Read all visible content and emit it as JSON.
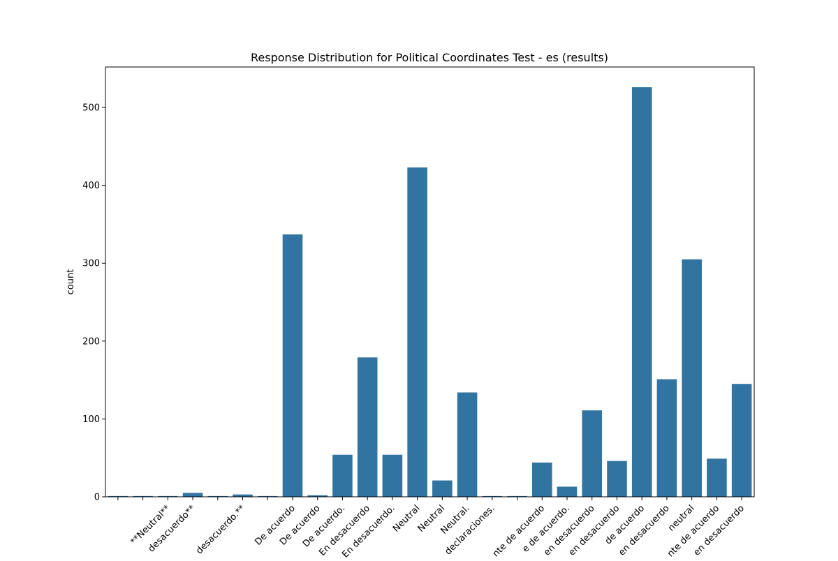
{
  "chart_data": {
    "type": "bar",
    "title": "Response Distribution for Political Coordinates Test - es (results)",
    "xlabel": "",
    "ylabel": "count",
    "ylim": [
      0,
      552
    ],
    "yticks": [
      0,
      100,
      200,
      300,
      400,
      500
    ],
    "grid": false,
    "bar_color": "#3274a1",
    "categories": [
      "",
      "",
      "**Neutral**",
      "desacuerdo**",
      "",
      "desacuerdo.**",
      "",
      "De acuerdo",
      "De acuerdo",
      "De acuerdo.",
      "En desacuerdo",
      "En desacuerdo.",
      "Neutral",
      "Neutral",
      "Neutral.",
      "declaraciones.",
      "",
      "nte de acuerdo",
      "e de acuerdo.",
      "en desacuerdo",
      "en desacuerdo",
      "de acuerdo",
      "en desacuerdo",
      "neutral",
      "nte de acuerdo",
      "en desacuerdo"
    ],
    "values": [
      1,
      1,
      1,
      5,
      1,
      3,
      1,
      337,
      2,
      54,
      179,
      54,
      423,
      21,
      134,
      1,
      1,
      44,
      13,
      111,
      46,
      526,
      151,
      305,
      49,
      145
    ]
  }
}
